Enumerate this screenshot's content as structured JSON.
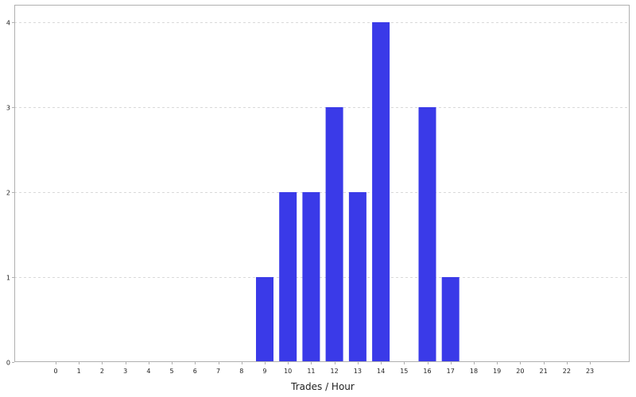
{
  "chart_data": {
    "type": "bar",
    "categories": [
      "0",
      "1",
      "2",
      "3",
      "4",
      "5",
      "6",
      "7",
      "8",
      "9",
      "10",
      "11",
      "12",
      "13",
      "14",
      "15",
      "16",
      "17",
      "18",
      "19",
      "20",
      "21",
      "22",
      "23"
    ],
    "values": [
      0,
      0,
      0,
      0,
      0,
      0,
      0,
      0,
      0,
      1,
      2,
      2,
      3,
      2,
      4,
      0,
      3,
      1,
      0,
      0,
      0,
      0,
      0,
      0
    ],
    "xlabel": "Trades / Hour",
    "ylabel": "",
    "yticks": [
      "0",
      "1",
      "2",
      "3",
      "4"
    ],
    "ylim": [
      0,
      4
    ],
    "grid": "horizontal dashed",
    "legend": "none",
    "bar_color": "#3a3ae8",
    "gridline_color": "#d9d9d9",
    "frame_color": "#b0b0b0"
  }
}
